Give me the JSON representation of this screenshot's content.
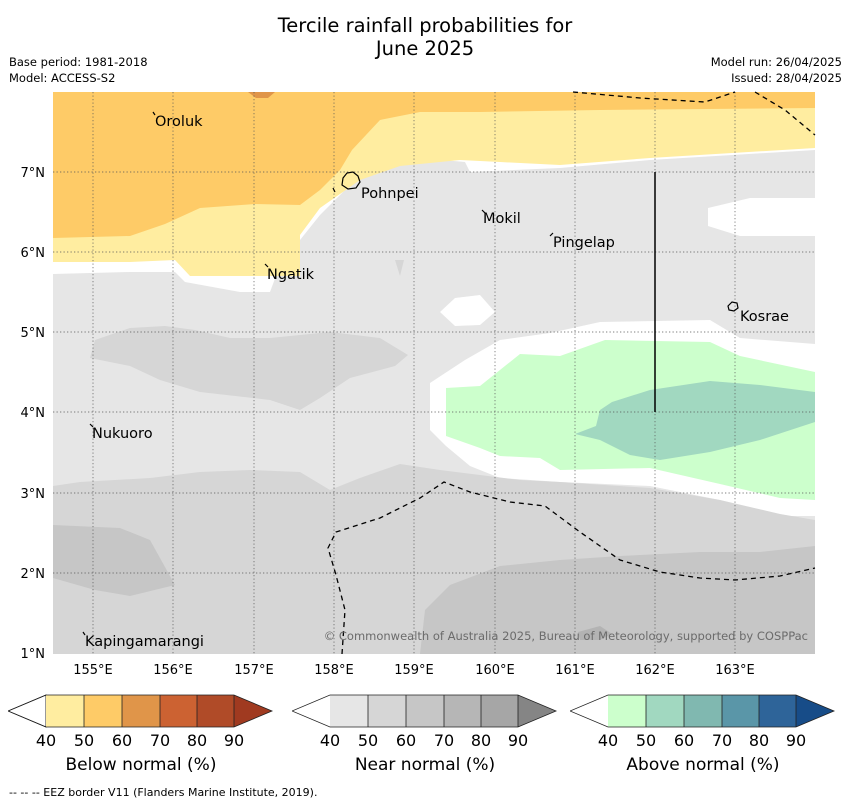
{
  "title_line1": "Tercile rainfall probabilities for",
  "title_line2": "June 2025",
  "meta_left": {
    "base_period": "Base period: 1981-2018",
    "model": "Model: ACCESS-S2"
  },
  "meta_right": {
    "model_run": "Model run: 26/04/2025",
    "issued": "Issued: 28/04/2025"
  },
  "map": {
    "lon_ticks": [
      "155°E",
      "156°E",
      "157°E",
      "158°E",
      "159°E",
      "160°E",
      "161°E",
      "162°E",
      "163°E"
    ],
    "lat_ticks": [
      "7°N",
      "6°N",
      "5°N",
      "4°N",
      "3°N",
      "2°N",
      "1°N"
    ],
    "places": {
      "oroluk": "Oroluk",
      "pohnpei": "Pohnpei",
      "mokil": "Mokil",
      "pingelap": "Pingelap",
      "ngatik": "Ngatik",
      "kosrae": "Kosrae",
      "nukuoro": "Nukuoro",
      "kapingamarangi": "Kapingamarangi"
    },
    "copyright": "© Commonwealth of Australia 2025, Bureau of Meteorology, supported by COSPPac"
  },
  "colorbars": [
    {
      "title": "Below normal (%)",
      "ticks": [
        "40",
        "50",
        "60",
        "70",
        "80",
        "90"
      ],
      "colors": [
        "#ffffff",
        "#ffeda0",
        "#fecb67",
        "#e09549",
        "#cc6232",
        "#b04b28",
        "#a03a20"
      ]
    },
    {
      "title": "Near normal (%)",
      "ticks": [
        "40",
        "50",
        "60",
        "70",
        "80",
        "90"
      ],
      "colors": [
        "#ffffff",
        "#e6e6e6",
        "#d6d6d6",
        "#c6c6c6",
        "#b6b6b6",
        "#a6a6a6",
        "#858585"
      ]
    },
    {
      "title": "Above normal (%)",
      "ticks": [
        "40",
        "50",
        "60",
        "70",
        "80",
        "90"
      ],
      "colors": [
        "#ffffff",
        "#ccffcc",
        "#a1d8c0",
        "#80b8b0",
        "#5a96a8",
        "#2e6499",
        "#174c88"
      ]
    }
  ],
  "footnote": "--  --  -- EEZ border V11 (Flanders Marine Institute, 2019)."
}
